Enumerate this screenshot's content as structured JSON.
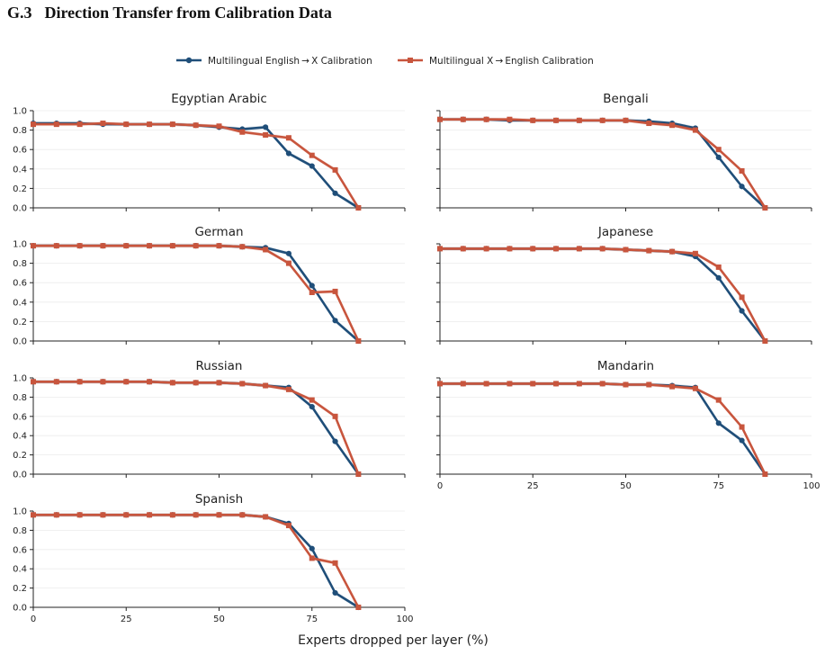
{
  "section": {
    "number": "G.3",
    "title": "Direction Transfer from Calibration Data"
  },
  "colors": {
    "series_a": "#1f4e79",
    "series_b": "#c8553d"
  },
  "chart_data": {
    "type": "line",
    "xlabel": "Experts dropped per layer (%)",
    "xlim": [
      0,
      100
    ],
    "ylim": [
      0,
      1.0
    ],
    "xticks": [
      "0",
      "25",
      "50",
      "75",
      "100"
    ],
    "yticks": [
      "0.0",
      "0.2",
      "0.4",
      "0.6",
      "0.8",
      "1.0"
    ],
    "legend": {
      "placement": "top-center",
      "entries": [
        "Multilingual English → X Calibration",
        "Multilingual X → English Calibration"
      ]
    },
    "x": [
      0,
      6.25,
      12.5,
      18.75,
      25,
      31.25,
      37.5,
      43.75,
      50,
      56.25,
      62.5,
      68.75,
      75,
      81.25,
      87.5
    ],
    "panels": [
      {
        "title": "Egyptian Arabic",
        "series": [
          {
            "name": "Multilingual English → X Calibration",
            "values": [
              0.87,
              0.87,
              0.87,
              0.86,
              0.86,
              0.86,
              0.86,
              0.85,
              0.83,
              0.81,
              0.83,
              0.56,
              0.43,
              0.15,
              0.0
            ]
          },
          {
            "name": "Multilingual X → English Calibration",
            "values": [
              0.86,
              0.86,
              0.86,
              0.87,
              0.86,
              0.86,
              0.86,
              0.85,
              0.84,
              0.78,
              0.75,
              0.72,
              0.54,
              0.39,
              0.0
            ]
          }
        ]
      },
      {
        "title": "Bengali",
        "series": [
          {
            "name": "Multilingual English → X Calibration",
            "values": [
              0.91,
              0.91,
              0.91,
              0.9,
              0.9,
              0.9,
              0.9,
              0.9,
              0.9,
              0.89,
              0.87,
              0.82,
              0.52,
              0.22,
              0.0
            ]
          },
          {
            "name": "Multilingual X → English Calibration",
            "values": [
              0.91,
              0.91,
              0.91,
              0.91,
              0.9,
              0.9,
              0.9,
              0.9,
              0.9,
              0.87,
              0.85,
              0.8,
              0.6,
              0.38,
              0.0
            ]
          }
        ]
      },
      {
        "title": "German",
        "series": [
          {
            "name": "Multilingual English → X Calibration",
            "values": [
              0.98,
              0.98,
              0.98,
              0.98,
              0.98,
              0.98,
              0.98,
              0.98,
              0.98,
              0.97,
              0.96,
              0.9,
              0.57,
              0.21,
              0.0
            ]
          },
          {
            "name": "Multilingual X → English Calibration",
            "values": [
              0.98,
              0.98,
              0.98,
              0.98,
              0.98,
              0.98,
              0.98,
              0.98,
              0.98,
              0.97,
              0.94,
              0.8,
              0.5,
              0.51,
              0.0
            ]
          }
        ]
      },
      {
        "title": "Japanese",
        "series": [
          {
            "name": "Multilingual English → X Calibration",
            "values": [
              0.95,
              0.95,
              0.95,
              0.95,
              0.95,
              0.95,
              0.95,
              0.95,
              0.94,
              0.93,
              0.92,
              0.87,
              0.65,
              0.31,
              0.0
            ]
          },
          {
            "name": "Multilingual X → English Calibration",
            "values": [
              0.95,
              0.95,
              0.95,
              0.95,
              0.95,
              0.95,
              0.95,
              0.95,
              0.94,
              0.93,
              0.92,
              0.9,
              0.76,
              0.45,
              0.0
            ]
          }
        ]
      },
      {
        "title": "Russian",
        "series": [
          {
            "name": "Multilingual English → X Calibration",
            "values": [
              0.96,
              0.96,
              0.96,
              0.96,
              0.96,
              0.96,
              0.95,
              0.95,
              0.95,
              0.94,
              0.92,
              0.9,
              0.7,
              0.34,
              0.0
            ]
          },
          {
            "name": "Multilingual X → English Calibration",
            "values": [
              0.96,
              0.96,
              0.96,
              0.96,
              0.96,
              0.96,
              0.95,
              0.95,
              0.95,
              0.94,
              0.92,
              0.88,
              0.77,
              0.6,
              0.0
            ]
          }
        ]
      },
      {
        "title": "Mandarin",
        "series": [
          {
            "name": "Multilingual English → X Calibration",
            "values": [
              0.94,
              0.94,
              0.94,
              0.94,
              0.94,
              0.94,
              0.94,
              0.94,
              0.93,
              0.93,
              0.92,
              0.9,
              0.53,
              0.35,
              0.0
            ]
          },
          {
            "name": "Multilingual X → English Calibration",
            "values": [
              0.94,
              0.94,
              0.94,
              0.94,
              0.94,
              0.94,
              0.94,
              0.94,
              0.93,
              0.93,
              0.91,
              0.89,
              0.77,
              0.49,
              0.0
            ]
          }
        ]
      },
      {
        "title": "Spanish",
        "series": [
          {
            "name": "Multilingual English → X Calibration",
            "values": [
              0.96,
              0.96,
              0.96,
              0.96,
              0.96,
              0.96,
              0.96,
              0.96,
              0.96,
              0.96,
              0.94,
              0.87,
              0.61,
              0.15,
              0.0
            ]
          },
          {
            "name": "Multilingual X → English Calibration",
            "values": [
              0.96,
              0.96,
              0.96,
              0.96,
              0.96,
              0.96,
              0.96,
              0.96,
              0.96,
              0.96,
              0.94,
              0.85,
              0.51,
              0.46,
              0.0
            ]
          }
        ]
      }
    ]
  }
}
